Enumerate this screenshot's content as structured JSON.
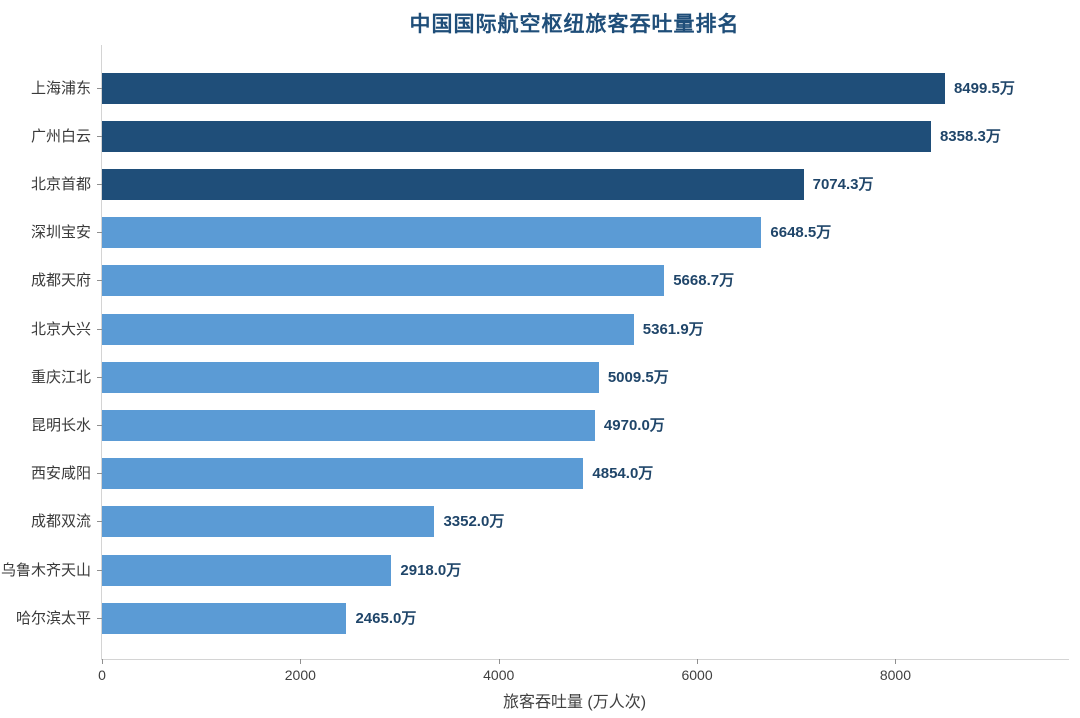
{
  "chart_data": {
    "type": "bar",
    "orientation": "horizontal",
    "title": "中国国际航空枢纽旅客吞吐量排名",
    "xlabel": "旅客吞吐量 (万人次)",
    "categories": [
      "上海浦东",
      "广州白云",
      "北京首都",
      "深圳宝安",
      "成都天府",
      "北京大兴",
      "重庆江北",
      "昆明长水",
      "西安咸阳",
      "成都双流",
      "乌鲁木齐天山",
      "哈尔滨太平"
    ],
    "values": [
      8499.5,
      8358.3,
      7074.3,
      6648.5,
      5668.7,
      5361.9,
      5009.5,
      4970.0,
      4854.0,
      3352.0,
      2918.0,
      2465.0
    ],
    "value_labels": [
      "8499.5万",
      "8358.3万",
      "7074.3万",
      "6648.5万",
      "5668.7万",
      "5361.9万",
      "5009.5万",
      "4970.0万",
      "4854.0万",
      "3352.0万",
      "2918.0万",
      "2465.0万"
    ],
    "xlim": [
      0,
      9750
    ],
    "xticks": [
      0,
      2000,
      4000,
      6000,
      8000
    ],
    "xtick_labels": [
      "0",
      "2000",
      "4000",
      "6000",
      "8000"
    ],
    "highlight_first_n": 3,
    "grid": "off",
    "legend": "none",
    "colors": {
      "bar_highlight": "#1f4e79",
      "bar_default": "#5b9bd5",
      "title_text": "#1f4e79",
      "value_text": "#1f4569",
      "category_text": "#3a3a3a",
      "tick_text": "#3f3f3f",
      "axis_line": "#d4d4d4",
      "tick_mark": "#8f8f8f"
    }
  }
}
